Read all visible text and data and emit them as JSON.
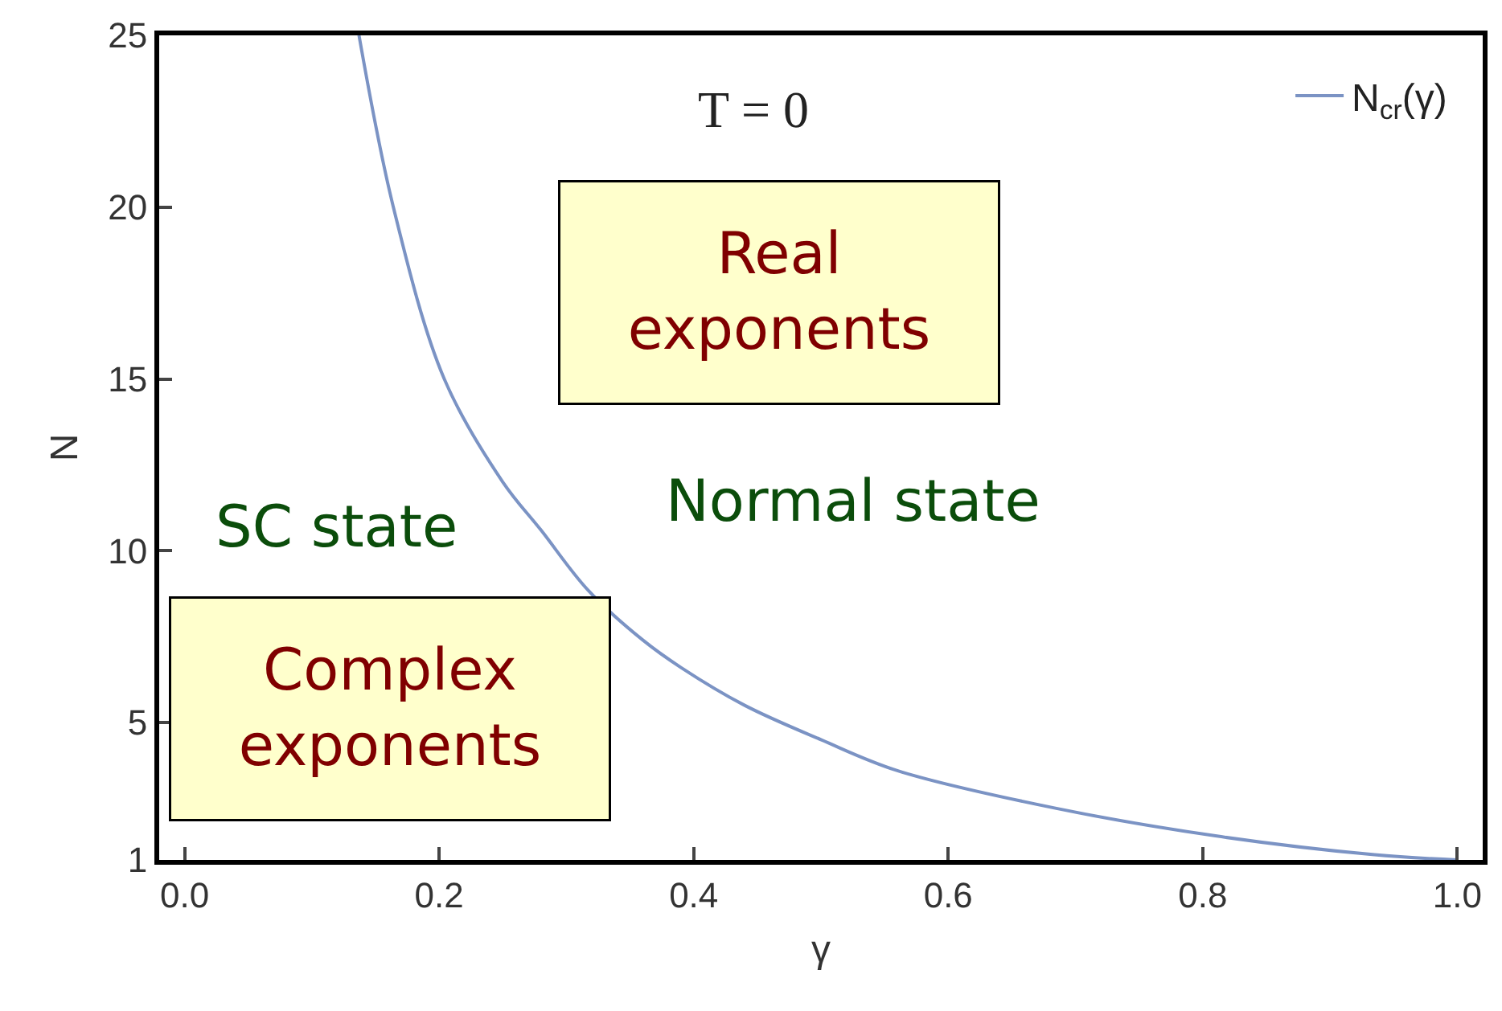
{
  "chart_data": {
    "type": "line",
    "xlabel": "γ",
    "ylabel": "N",
    "xlim": [
      -0.02,
      1.02
    ],
    "xticks": [
      {
        "value": 0,
        "label": "0.0"
      },
      0.2,
      0.4,
      0.6,
      0.8,
      {
        "value": 1,
        "label": "1.0"
      }
    ],
    "ylim": [
      1,
      25
    ],
    "yticks": [
      1,
      5,
      10,
      15,
      20,
      25
    ],
    "x": [
      0.137,
      0.164,
      0.204,
      0.25,
      0.28,
      0.317,
      0.36,
      0.39,
      0.44,
      0.5,
      0.56,
      0.685,
      0.81,
      0.935,
      1.0
    ],
    "series": [
      {
        "name": "N$_{cr}$(γ)",
        "color": "#7b93c4",
        "values": [
          25,
          20,
          15,
          12,
          10.6,
          8.85,
          7.4,
          6.6,
          5.5,
          4.5,
          3.6,
          2.5,
          1.7,
          1.15,
          1
        ]
      }
    ],
    "annotations": [
      "T = 0",
      "Real\nexponents",
      "Complex\nexponents",
      "SC state",
      "Normal state"
    ],
    "legend": "top right",
    "marker": "none",
    "line_style": "solid"
  }
}
